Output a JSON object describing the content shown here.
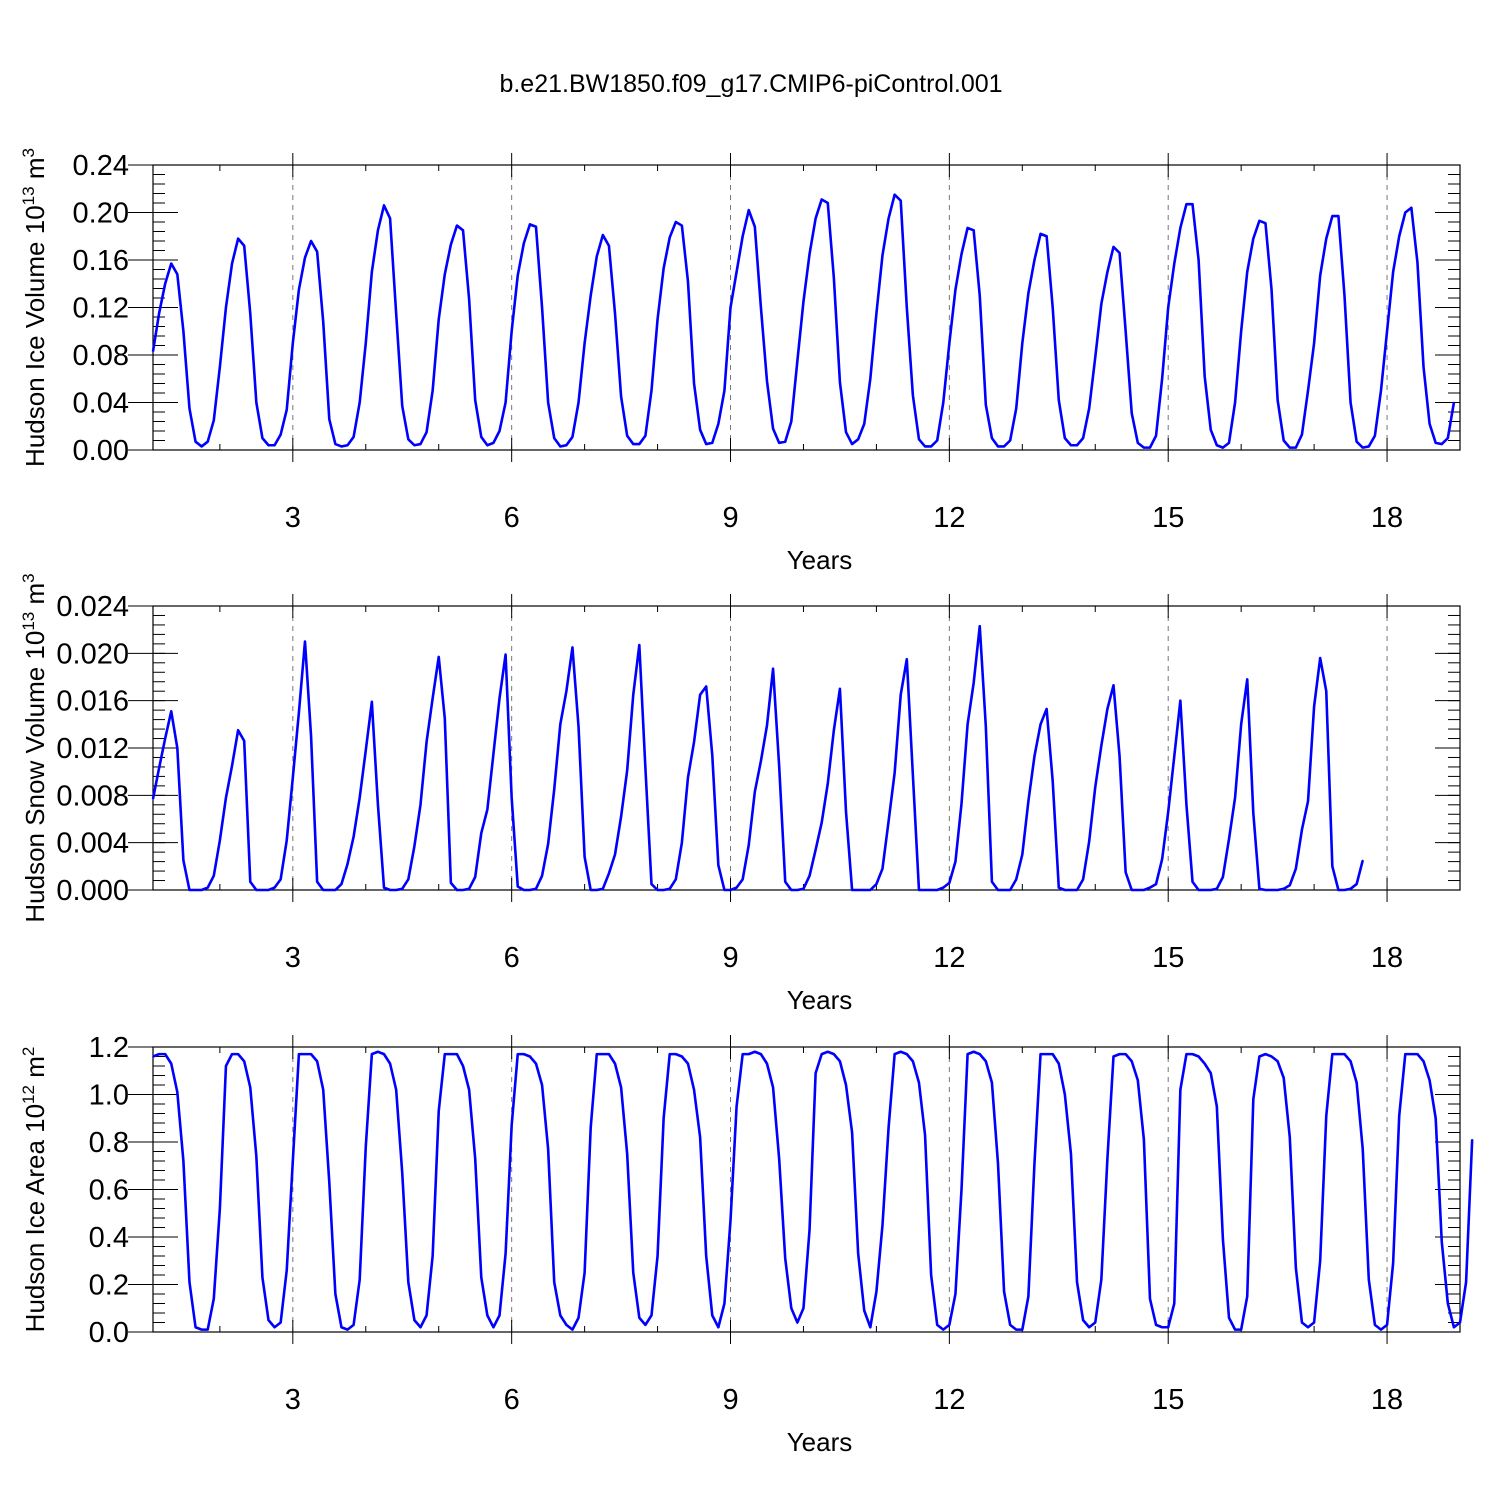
{
  "figure": {
    "title": "b.e21.BW1850.f09_g17.CMIP6-piControl.001",
    "line_color": "#0000ff"
  },
  "chart_data": [
    {
      "type": "line",
      "title": "",
      "xlabel": "Years",
      "ylabel": "Hudson Ice Volume 10",
      "ylabel_exp": "13",
      "ylabel_unit": " m",
      "ylabel_unit_exp": "3",
      "xlim": [
        1.0833,
        19.0
      ],
      "ylim": [
        0,
        0.24
      ],
      "x_ticks": [
        3,
        6,
        9,
        12,
        15,
        18
      ],
      "x_tick_labels": [
        "3",
        "6",
        "9",
        "12",
        "15",
        "18"
      ],
      "y_ticks": [
        0,
        0.04,
        0.08,
        0.12,
        0.16,
        0.2,
        0.24
      ],
      "y_tick_labels": [
        "0.00",
        "0.04",
        "0.08",
        "0.12",
        "0.16",
        "0.20",
        "0.24"
      ],
      "y_minor": 0.008,
      "grid": "dashed vertical at major x ticks",
      "series": [
        {
          "x_start": 1.0833,
          "x_step": 0.0833333,
          "values": [
            0.083,
            0.115,
            0.14,
            0.157,
            0.148,
            0.1,
            0.035,
            0.007,
            0.003,
            0.007,
            0.025,
            0.07,
            0.12,
            0.157,
            0.178,
            0.172,
            0.115,
            0.04,
            0.01,
            0.004,
            0.004,
            0.013,
            0.034,
            0.09,
            0.135,
            0.162,
            0.176,
            0.167,
            0.108,
            0.026,
            0.005,
            0.003,
            0.004,
            0.011,
            0.04,
            0.09,
            0.15,
            0.185,
            0.206,
            0.195,
            0.115,
            0.037,
            0.009,
            0.004,
            0.005,
            0.015,
            0.05,
            0.11,
            0.148,
            0.173,
            0.189,
            0.185,
            0.127,
            0.042,
            0.011,
            0.004,
            0.006,
            0.016,
            0.04,
            0.1,
            0.147,
            0.174,
            0.19,
            0.188,
            0.12,
            0.04,
            0.01,
            0.003,
            0.004,
            0.011,
            0.04,
            0.09,
            0.13,
            0.163,
            0.181,
            0.172,
            0.115,
            0.045,
            0.012,
            0.005,
            0.005,
            0.012,
            0.05,
            0.11,
            0.153,
            0.179,
            0.192,
            0.189,
            0.142,
            0.056,
            0.017,
            0.005,
            0.006,
            0.022,
            0.05,
            0.12,
            0.15,
            0.18,
            0.202,
            0.188,
            0.12,
            0.058,
            0.018,
            0.006,
            0.007,
            0.024,
            0.075,
            0.125,
            0.165,
            0.195,
            0.211,
            0.208,
            0.145,
            0.057,
            0.015,
            0.005,
            0.009,
            0.022,
            0.06,
            0.115,
            0.164,
            0.195,
            0.215,
            0.21,
            0.12,
            0.046,
            0.009,
            0.003,
            0.003,
            0.008,
            0.04,
            0.09,
            0.135,
            0.165,
            0.187,
            0.185,
            0.13,
            0.038,
            0.01,
            0.003,
            0.003,
            0.008,
            0.035,
            0.09,
            0.132,
            0.16,
            0.182,
            0.18,
            0.12,
            0.042,
            0.01,
            0.004,
            0.004,
            0.01,
            0.035,
            0.078,
            0.123,
            0.15,
            0.171,
            0.166,
            0.1,
            0.031,
            0.006,
            0.002,
            0.002,
            0.012,
            0.06,
            0.12,
            0.157,
            0.187,
            0.207,
            0.207,
            0.16,
            0.062,
            0.017,
            0.004,
            0.002,
            0.006,
            0.04,
            0.1,
            0.15,
            0.178,
            0.193,
            0.191,
            0.135,
            0.042,
            0.008,
            0.002,
            0.002,
            0.013,
            0.05,
            0.09,
            0.147,
            0.178,
            0.197,
            0.197,
            0.13,
            0.04,
            0.007,
            0.002,
            0.003,
            0.012,
            0.05,
            0.1,
            0.15,
            0.18,
            0.2,
            0.204,
            0.158,
            0.07,
            0.022,
            0.006,
            0.005,
            0.01,
            0.04
          ]
        }
      ]
    },
    {
      "type": "line",
      "title": "",
      "xlabel": "Years",
      "ylabel": "Hudson Snow Volume 10",
      "ylabel_exp": "13",
      "ylabel_unit": " m",
      "ylabel_unit_exp": "3",
      "xlim": [
        1.0833,
        19.0
      ],
      "ylim": [
        0,
        0.024
      ],
      "x_ticks": [
        3,
        6,
        9,
        12,
        15,
        18
      ],
      "x_tick_labels": [
        "3",
        "6",
        "9",
        "12",
        "15",
        "18"
      ],
      "y_ticks": [
        0,
        0.004,
        0.008,
        0.012,
        0.016,
        0.02,
        0.024
      ],
      "y_tick_labels": [
        "0.000",
        "0.004",
        "0.008",
        "0.012",
        "0.016",
        "0.020",
        "0.024"
      ],
      "y_minor": 0.0008,
      "grid": "dashed vertical at major x ticks",
      "series": [
        {
          "x_start": 1.0833,
          "x_step": 0.0833333,
          "values": [
            0.0077,
            0.0103,
            0.0128,
            0.0151,
            0.012,
            0.0025,
            0.0,
            0.0,
            0.0,
            0.0002,
            0.0012,
            0.0042,
            0.0078,
            0.0105,
            0.0135,
            0.0126,
            0.0007,
            0.0,
            0.0,
            0.0,
            0.0002,
            0.0009,
            0.0042,
            0.0095,
            0.015,
            0.021,
            0.013,
            0.0007,
            0.0,
            0.0,
            0.0,
            0.0005,
            0.0022,
            0.0045,
            0.0078,
            0.0118,
            0.0159,
            0.0072,
            0.0002,
            0.0,
            0.0,
            0.0001,
            0.0009,
            0.0037,
            0.0072,
            0.0125,
            0.0162,
            0.0197,
            0.0145,
            0.0006,
            0.0,
            0.0,
            0.0001,
            0.0011,
            0.0048,
            0.0068,
            0.0115,
            0.0162,
            0.0199,
            0.0078,
            0.0003,
            0.0,
            0.0,
            0.0001,
            0.0012,
            0.0039,
            0.0085,
            0.014,
            0.0168,
            0.0205,
            0.0138,
            0.0028,
            0.0,
            0.0,
            0.0001,
            0.0014,
            0.003,
            0.0062,
            0.0101,
            0.0165,
            0.0207,
            0.0103,
            0.0005,
            0.0,
            0.0,
            0.0001,
            0.0009,
            0.004,
            0.0095,
            0.0125,
            0.0165,
            0.0172,
            0.0114,
            0.0021,
            0.0,
            0.0,
            0.0002,
            0.0009,
            0.0038,
            0.0083,
            0.0109,
            0.0139,
            0.0187,
            0.0105,
            0.0007,
            0.0,
            0.0,
            0.0001,
            0.0012,
            0.0034,
            0.0057,
            0.009,
            0.0135,
            0.017,
            0.0066,
            0.0,
            0.0,
            0.0,
            0.0,
            0.0005,
            0.0018,
            0.0058,
            0.0099,
            0.0165,
            0.0195,
            0.0097,
            0.0,
            0.0,
            0.0,
            0.0,
            0.0002,
            0.0006,
            0.0024,
            0.0073,
            0.014,
            0.0175,
            0.0223,
            0.0138,
            0.0007,
            0.0,
            0.0,
            0.0,
            0.0009,
            0.003,
            0.0075,
            0.0113,
            0.014,
            0.0153,
            0.0092,
            0.0002,
            0.0,
            0.0,
            0.0,
            0.0009,
            0.0041,
            0.0087,
            0.0122,
            0.0153,
            0.0173,
            0.0113,
            0.0015,
            0.0,
            0.0,
            0.0,
            0.0002,
            0.0005,
            0.0026,
            0.0066,
            0.0113,
            0.016,
            0.0072,
            0.0007,
            0.0,
            0.0,
            0.0,
            0.0001,
            0.0011,
            0.0043,
            0.0078,
            0.014,
            0.0178,
            0.0065,
            0.0001,
            0.0,
            0.0,
            0.0,
            0.0001,
            0.0004,
            0.0018,
            0.0051,
            0.0075,
            0.0155,
            0.0196,
            0.0168,
            0.002,
            0.0,
            0.0,
            0.0001,
            0.0005,
            0.0025
          ]
        }
      ]
    },
    {
      "type": "line",
      "title": "",
      "xlabel": "Years",
      "ylabel": "Hudson Ice Area 10",
      "ylabel_exp": "12",
      "ylabel_unit": " m",
      "ylabel_unit_exp": "2",
      "xlim": [
        1.0833,
        19.0
      ],
      "ylim": [
        0,
        1.2
      ],
      "x_ticks": [
        3,
        6,
        9,
        12,
        15,
        18
      ],
      "x_tick_labels": [
        "3",
        "6",
        "9",
        "12",
        "15",
        "18"
      ],
      "y_ticks": [
        0,
        0.2,
        0.4,
        0.6,
        0.8,
        1.0,
        1.2
      ],
      "y_tick_labels": [
        "0.0",
        "0.2",
        "0.4",
        "0.6",
        "0.8",
        "1.0",
        "1.2"
      ],
      "y_minor": 0.04,
      "grid": "dashed vertical at major x ticks",
      "series": [
        {
          "x_start": 1.0833,
          "x_step": 0.0833333,
          "values": [
            1.16,
            1.17,
            1.17,
            1.13,
            1.01,
            0.72,
            0.21,
            0.02,
            0.01,
            0.01,
            0.14,
            0.52,
            1.12,
            1.17,
            1.17,
            1.14,
            1.03,
            0.74,
            0.23,
            0.05,
            0.02,
            0.04,
            0.26,
            0.72,
            1.17,
            1.17,
            1.17,
            1.14,
            1.02,
            0.63,
            0.16,
            0.02,
            0.01,
            0.03,
            0.22,
            0.78,
            1.17,
            1.18,
            1.17,
            1.13,
            1.02,
            0.67,
            0.21,
            0.05,
            0.02,
            0.07,
            0.32,
            0.93,
            1.17,
            1.17,
            1.17,
            1.12,
            1.02,
            0.73,
            0.23,
            0.07,
            0.02,
            0.07,
            0.33,
            0.87,
            1.17,
            1.17,
            1.16,
            1.13,
            1.04,
            0.77,
            0.21,
            0.07,
            0.03,
            0.01,
            0.06,
            0.25,
            0.86,
            1.17,
            1.17,
            1.17,
            1.13,
            1.03,
            0.75,
            0.25,
            0.06,
            0.03,
            0.07,
            0.32,
            0.9,
            1.17,
            1.17,
            1.16,
            1.13,
            1.02,
            0.82,
            0.32,
            0.07,
            0.02,
            0.12,
            0.47,
            0.95,
            1.17,
            1.17,
            1.18,
            1.17,
            1.13,
            1.03,
            0.73,
            0.31,
            0.1,
            0.04,
            0.1,
            0.43,
            1.09,
            1.17,
            1.18,
            1.17,
            1.14,
            1.04,
            0.84,
            0.33,
            0.09,
            0.02,
            0.17,
            0.45,
            0.86,
            1.17,
            1.18,
            1.17,
            1.14,
            1.05,
            0.83,
            0.24,
            0.03,
            0.01,
            0.03,
            0.16,
            0.6,
            1.17,
            1.18,
            1.17,
            1.14,
            1.05,
            0.71,
            0.17,
            0.03,
            0.01,
            0.01,
            0.15,
            0.71,
            1.17,
            1.17,
            1.17,
            1.13,
            1.0,
            0.75,
            0.21,
            0.05,
            0.02,
            0.04,
            0.22,
            0.73,
            1.16,
            1.17,
            1.17,
            1.14,
            1.06,
            0.81,
            0.14,
            0.03,
            0.02,
            0.02,
            0.12,
            1.02,
            1.17,
            1.17,
            1.16,
            1.13,
            1.09,
            0.95,
            0.39,
            0.06,
            0.01,
            0.01,
            0.15,
            0.98,
            1.16,
            1.17,
            1.16,
            1.14,
            1.07,
            0.82,
            0.27,
            0.04,
            0.02,
            0.04,
            0.3,
            0.91,
            1.17,
            1.17,
            1.17,
            1.14,
            1.05,
            0.77,
            0.22,
            0.03,
            0.01,
            0.03,
            0.29,
            0.91,
            1.17,
            1.17,
            1.17,
            1.14,
            1.06,
            0.9,
            0.38,
            0.12,
            0.02,
            0.04,
            0.21,
            0.81
          ]
        }
      ]
    }
  ]
}
